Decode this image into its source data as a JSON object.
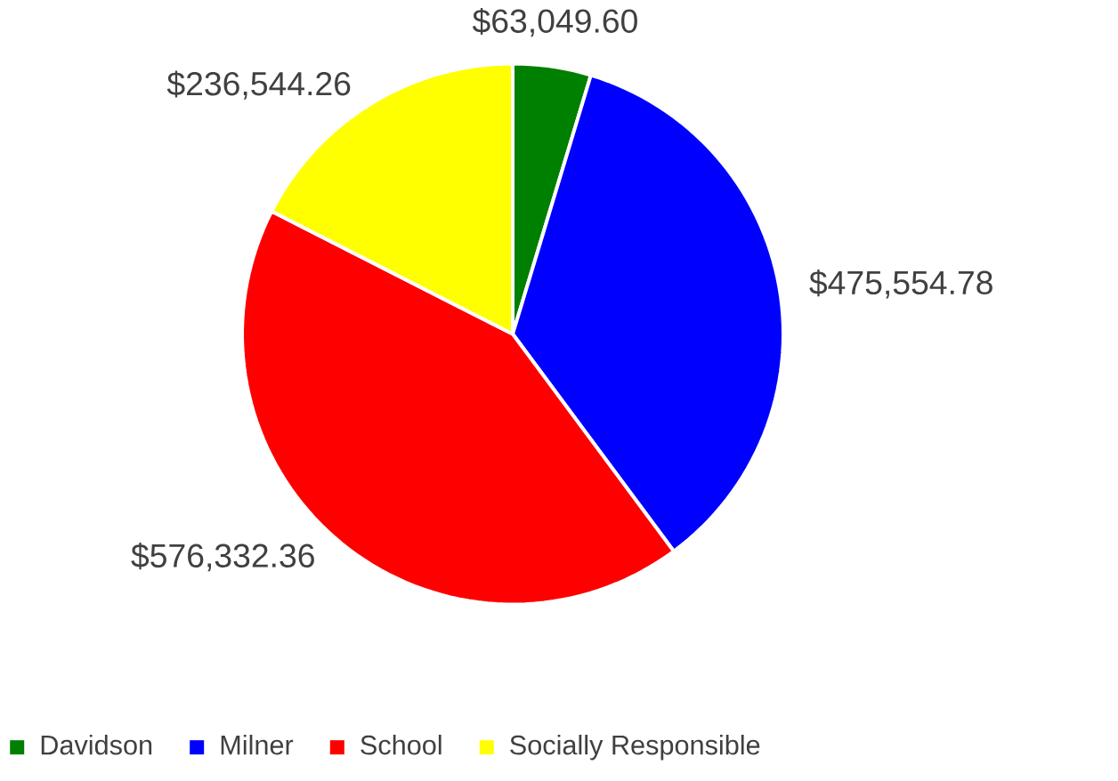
{
  "chart_data": {
    "type": "pie",
    "categories": [
      "Davidson",
      "Milner",
      "School",
      "Socially Responsible"
    ],
    "values": [
      63049.6,
      475554.78,
      576332.36,
      236544.26
    ],
    "value_labels": [
      "$63,049.60",
      "$475,554.78",
      "$576,332.36",
      "$236,544.26"
    ],
    "colors": [
      "#008000",
      "#0000ff",
      "#ff0000",
      "#ffff00"
    ],
    "legend": "bottom"
  }
}
